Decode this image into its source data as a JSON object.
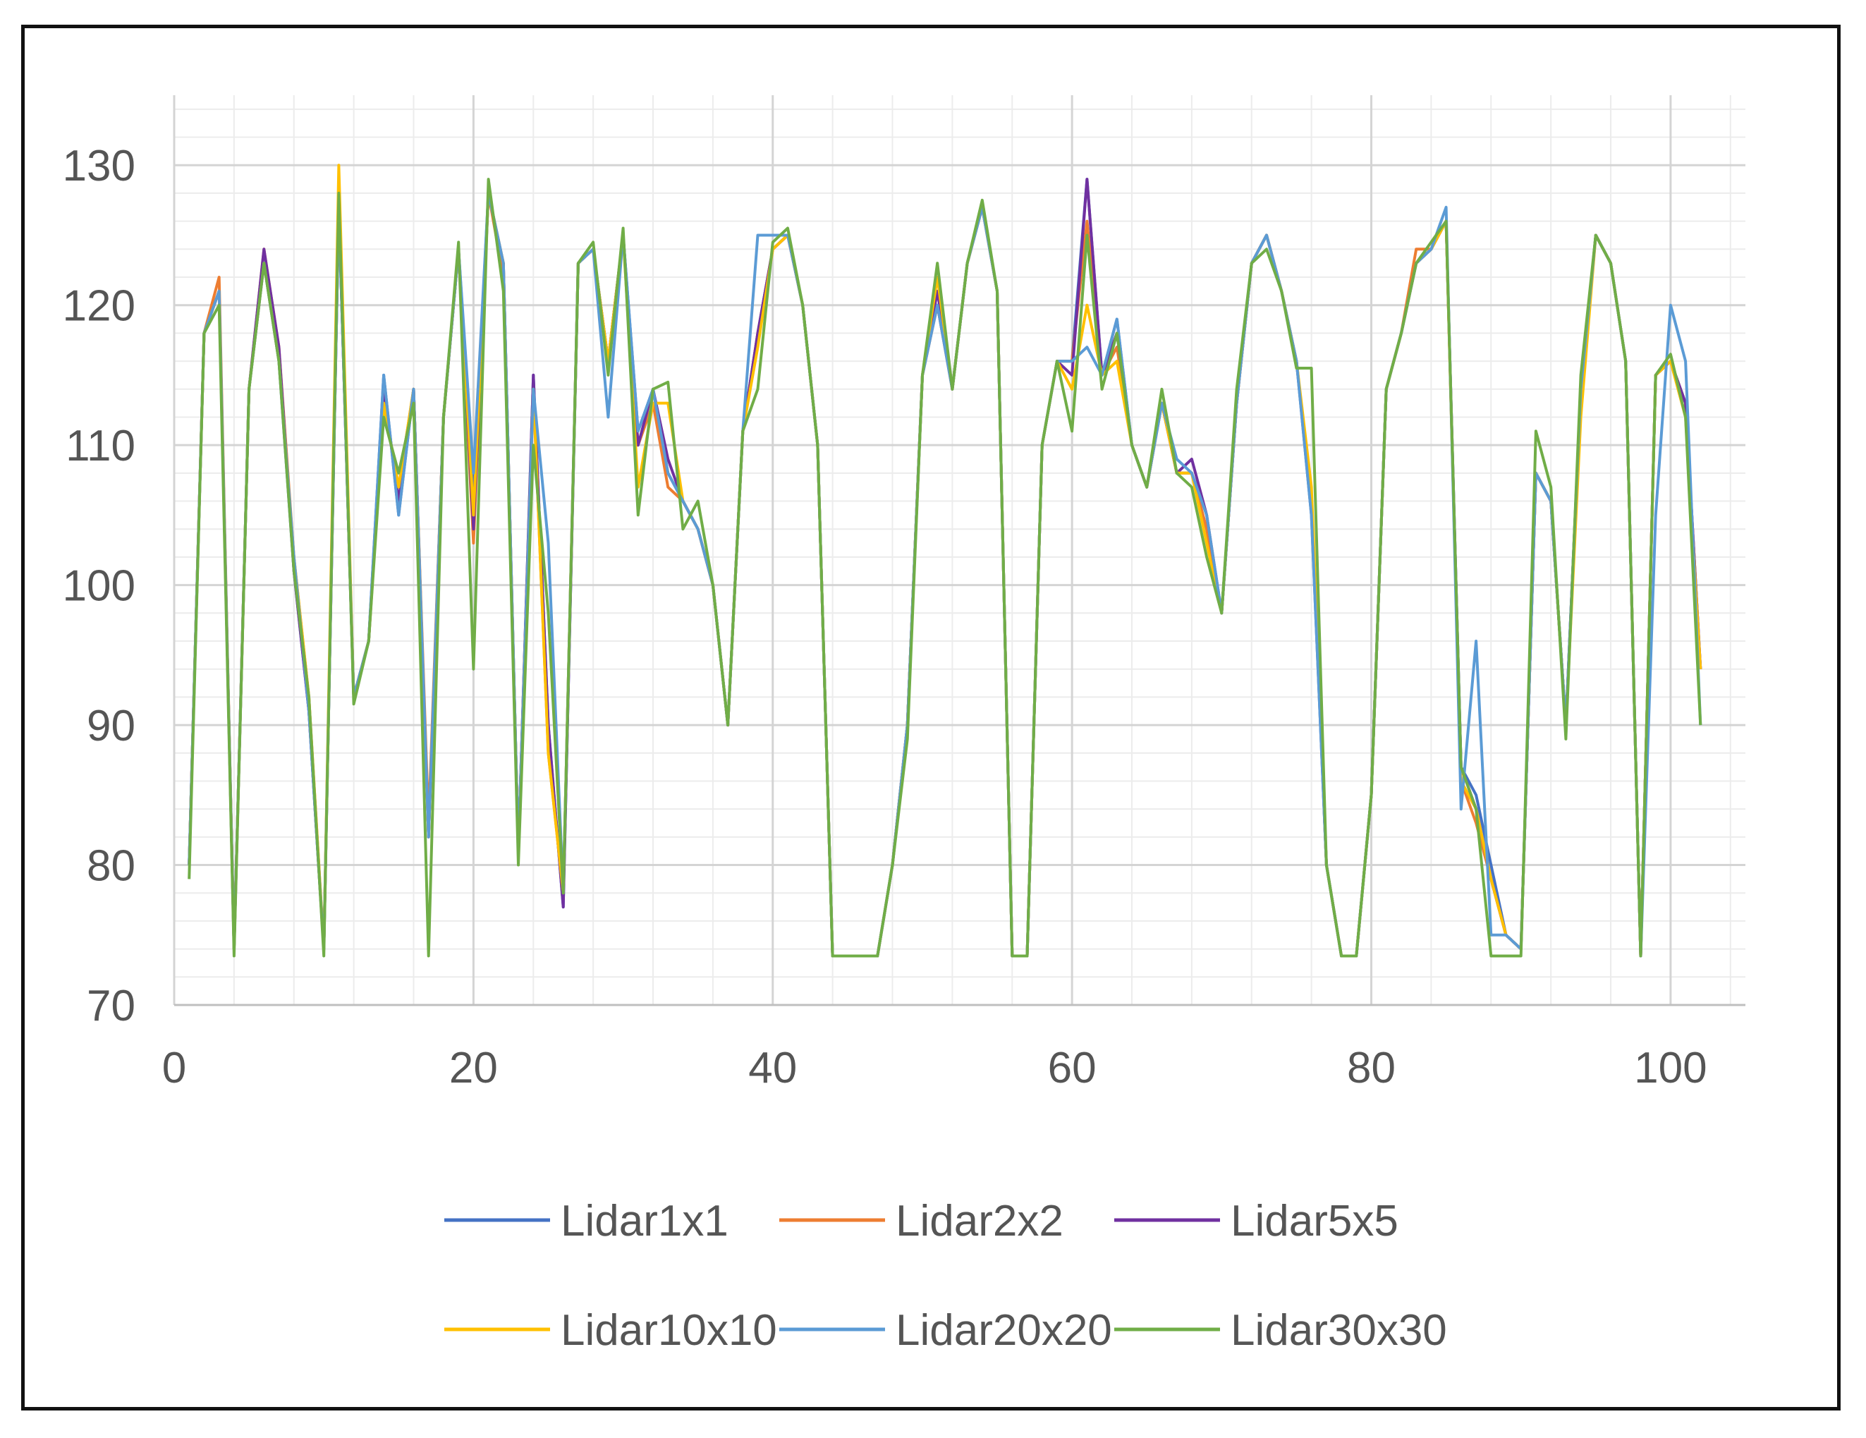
{
  "chart_data": {
    "type": "line",
    "title": "",
    "xlabel": "",
    "ylabel": "",
    "xlim": [
      0,
      105
    ],
    "ylim": [
      70,
      135
    ],
    "x_ticks": [
      0,
      20,
      40,
      60,
      80,
      100
    ],
    "y_ticks": [
      70,
      80,
      90,
      100,
      110,
      120,
      130
    ],
    "grid": true,
    "legend_position": "bottom",
    "series": [
      {
        "name": "Lidar1x1",
        "color": "#4472C4",
        "values": [
          80,
          118,
          121,
          74,
          114,
          123,
          116,
          101,
          91,
          74,
          127,
          92,
          96,
          115,
          105,
          114,
          82,
          112,
          124,
          107,
          128,
          123,
          81,
          115,
          90,
          77,
          123,
          124,
          116,
          125,
          111,
          114,
          108,
          106,
          104,
          100,
          90,
          111,
          118,
          124,
          125,
          120,
          110,
          73.5,
          73.5,
          73.5,
          73.5,
          80,
          90,
          115,
          120,
          114,
          123,
          127,
          121,
          73.5,
          73.5,
          110,
          116,
          116,
          129,
          115,
          119,
          110,
          107,
          113,
          108,
          108,
          104,
          98,
          113,
          123,
          125,
          121,
          116,
          105,
          80,
          73.5,
          73.5,
          85,
          114,
          118,
          123,
          124,
          126,
          87,
          85,
          80,
          75,
          74,
          108,
          106,
          90,
          114,
          125,
          123,
          116,
          73.5,
          115,
          116,
          113,
          94
        ]
      },
      {
        "name": "Lidar2x2",
        "color": "#ED7D31",
        "values": [
          80,
          118,
          122,
          74,
          114,
          124,
          117,
          102,
          92,
          74,
          128,
          92,
          96,
          113,
          107,
          114,
          83,
          112,
          124,
          103,
          128,
          122,
          81,
          114,
          88,
          78,
          123,
          124,
          116,
          125,
          110,
          113,
          107,
          106,
          104,
          100,
          90,
          111,
          118,
          124,
          125,
          120,
          110,
          73.5,
          73.5,
          73.5,
          73.5,
          80,
          90,
          115,
          120,
          114,
          123,
          127,
          121,
          73.5,
          73.5,
          110,
          116,
          116,
          126,
          115,
          117,
          110,
          107,
          113,
          108,
          108,
          104,
          98,
          113,
          123,
          125,
          121,
          116,
          106,
          80,
          73.5,
          73.5,
          85,
          114,
          118,
          124,
          124,
          126,
          86,
          83,
          79,
          75,
          74,
          108,
          106,
          90,
          113,
          125,
          123,
          116,
          73.5,
          115,
          116,
          113,
          94
        ]
      },
      {
        "name": "Lidar5x5",
        "color": "#7030A0",
        "values": [
          80,
          118,
          121,
          74,
          114,
          124,
          117,
          101,
          91,
          74,
          127,
          92,
          96,
          114,
          106,
          114,
          82,
          112,
          124,
          104,
          128,
          123,
          81,
          115,
          90,
          77,
          123,
          124,
          116,
          125,
          110,
          114,
          109,
          106,
          104,
          100,
          90,
          111,
          118,
          124,
          125,
          120,
          110,
          73.5,
          73.5,
          73.5,
          73.5,
          80,
          90,
          115,
          121,
          114,
          123,
          127,
          121,
          73.5,
          73.5,
          110,
          116,
          115,
          129,
          115,
          118,
          110,
          107,
          113,
          108,
          109,
          105,
          98,
          113,
          123,
          125,
          121,
          116,
          106,
          80,
          73.5,
          73.5,
          85,
          114,
          118,
          123,
          124,
          126,
          87,
          84,
          79,
          75,
          74,
          108,
          106,
          90,
          114,
          125,
          123,
          116,
          73.5,
          115,
          116,
          113,
          94
        ]
      },
      {
        "name": "Lidar10x10",
        "color": "#FFC000",
        "values": [
          80,
          118,
          121,
          74,
          114,
          123,
          116,
          102,
          92,
          74,
          130,
          92,
          96,
          113,
          107,
          114,
          82,
          112,
          124,
          105,
          128,
          123,
          81,
          114,
          88,
          78,
          123,
          124,
          116,
          125,
          107,
          113,
          113,
          106,
          104,
          100,
          90,
          111,
          117,
          124,
          125,
          120,
          110,
          73.5,
          73.5,
          73.5,
          73.5,
          80,
          90,
          115,
          122,
          114,
          123,
          127,
          121,
          73.5,
          73.5,
          110,
          116,
          114,
          120,
          115,
          116,
          110,
          107,
          113,
          108,
          108,
          103,
          98,
          113,
          123,
          125,
          121,
          116,
          107,
          80,
          73.5,
          73.5,
          85,
          114,
          118,
          123,
          124,
          126,
          86,
          84,
          79,
          75,
          74,
          108,
          106,
          90,
          112,
          125,
          123,
          116,
          73.5,
          115,
          116,
          112,
          94
        ]
      },
      {
        "name": "Lidar20x20",
        "color": "#5B9BD5",
        "values": [
          80,
          118,
          121,
          74,
          114,
          123,
          116,
          102,
          91,
          74,
          127,
          92,
          96,
          115,
          105,
          114,
          82,
          112,
          124,
          108,
          128,
          123,
          81,
          114,
          103,
          78,
          123,
          124,
          112,
          125,
          111,
          114,
          108,
          106,
          104,
          100,
          90,
          111,
          125,
          125,
          125,
          120,
          110,
          73.5,
          73.5,
          73.5,
          73.5,
          80,
          90,
          115,
          120,
          114,
          123,
          127,
          121,
          73.5,
          73.5,
          110,
          116,
          116,
          117,
          115,
          119,
          110,
          107,
          113,
          109,
          108,
          105,
          98,
          113,
          123,
          125,
          121,
          116,
          105,
          80,
          73.5,
          73.5,
          85,
          114,
          118,
          123,
          124,
          127,
          84,
          96,
          75,
          75,
          74,
          108,
          106,
          90,
          114,
          125,
          123,
          116,
          73.5,
          105,
          120,
          116,
          90
        ]
      },
      {
        "name": "Lidar30x30",
        "color": "#70AD47",
        "values": [
          79,
          118,
          120,
          73.5,
          114,
          123,
          116,
          101,
          92,
          73.5,
          128,
          91.5,
          96,
          112,
          108,
          113,
          73.5,
          112,
          124.5,
          94,
          129,
          121,
          80,
          110,
          98,
          78,
          123,
          124.5,
          115,
          125.5,
          105,
          114,
          114.5,
          104,
          106,
          100,
          90,
          111,
          114,
          124.5,
          125.5,
          120,
          110,
          73.5,
          73.5,
          73.5,
          73.5,
          80,
          89,
          115,
          123,
          114,
          123,
          127.5,
          121,
          73.5,
          73.5,
          110,
          116,
          111,
          125,
          114,
          118,
          110,
          107,
          114,
          108,
          107,
          102,
          98,
          114,
          123,
          124,
          121,
          115.5,
          115.5,
          80,
          73.5,
          73.5,
          85,
          114,
          118,
          123,
          124.5,
          126,
          87,
          84,
          73.5,
          73.5,
          73.5,
          111,
          107,
          89,
          115,
          125,
          123,
          116,
          73.5,
          115,
          116.5,
          112,
          90
        ]
      }
    ]
  }
}
